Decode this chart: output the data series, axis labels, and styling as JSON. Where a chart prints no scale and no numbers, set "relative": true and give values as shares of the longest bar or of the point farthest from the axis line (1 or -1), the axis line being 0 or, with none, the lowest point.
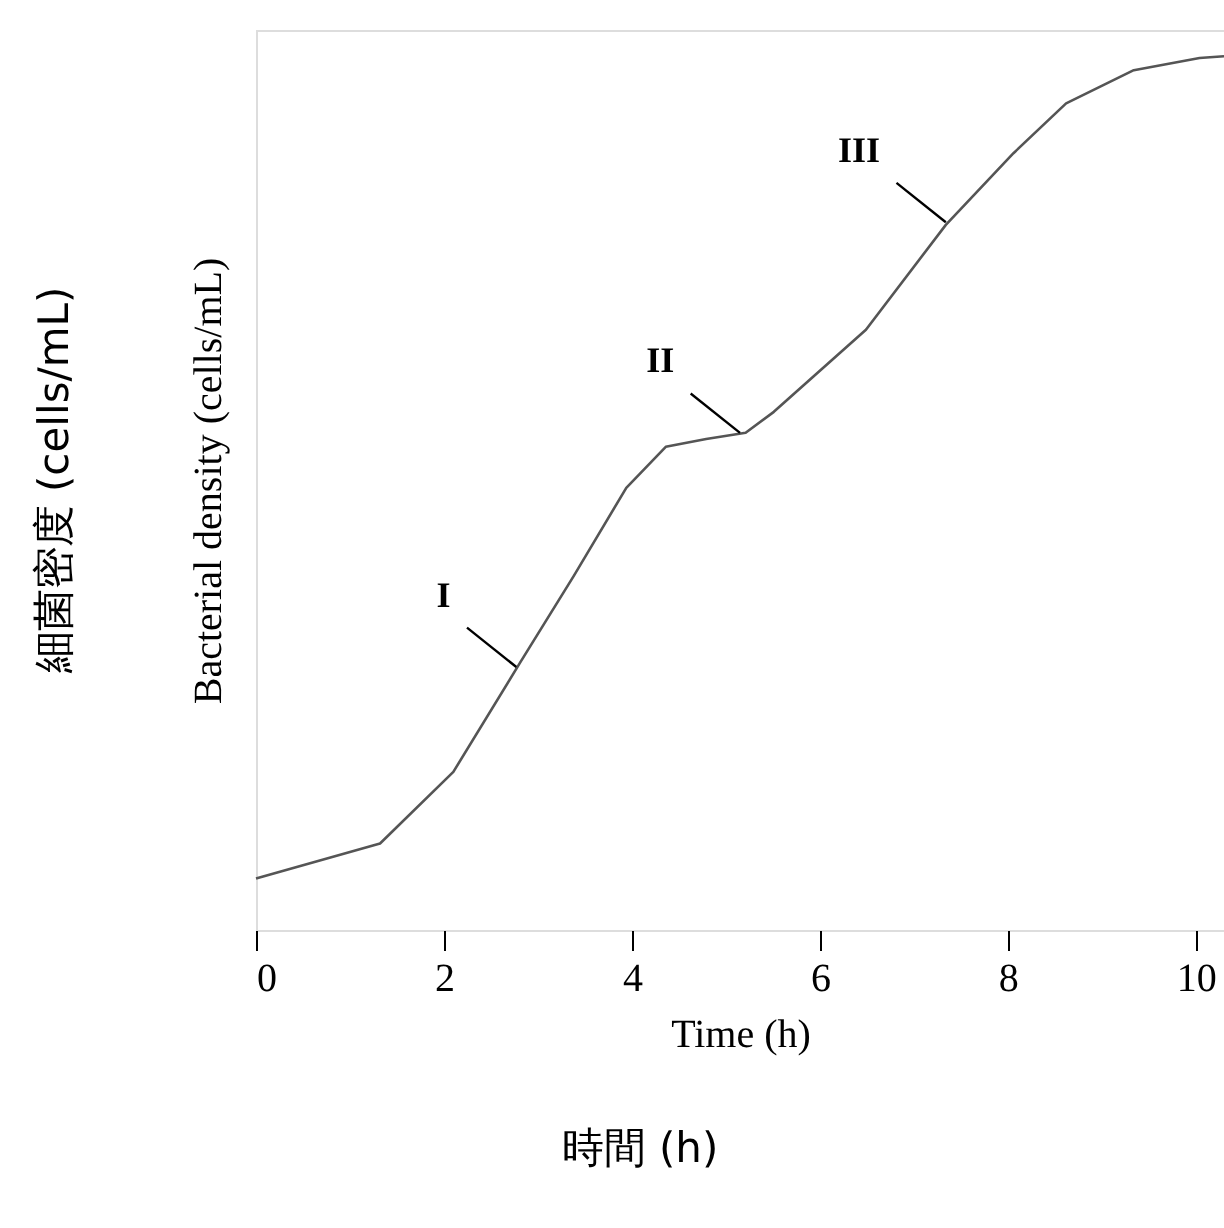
{
  "chart_data": {
    "type": "line",
    "relative": true,
    "xlabel": "Time (h)",
    "ylabel": "Bacterial density (cells/mL)",
    "x": [
      0,
      1.32,
      2.1,
      2.81,
      3.38,
      3.94,
      4.36,
      4.79,
      5.21,
      5.51,
      6.49,
      7.34,
      8.06,
      8.62,
      9.34,
      10.04,
      10.3
    ],
    "series": [
      {
        "color": "#555555",
        "values": [
          0.059,
          0.099,
          0.181,
          0.306,
          0.405,
          0.506,
          0.553,
          0.562,
          0.569,
          0.593,
          0.687,
          0.807,
          0.889,
          0.946,
          0.984,
          0.998,
          1.0
        ]
      }
    ],
    "xlim": [
      0,
      10.3
    ],
    "xticks": [
      0,
      2,
      4,
      6,
      8,
      10
    ],
    "annotations": [
      {
        "text": "I",
        "x": 2.77,
        "y": 0.301
      },
      {
        "text": "II",
        "x": 5.15,
        "y": 0.569
      },
      {
        "text": "III",
        "x": 7.34,
        "y": 0.81
      },
      "細菌密度 (cells/mL)",
      "時間 (h)"
    ]
  }
}
